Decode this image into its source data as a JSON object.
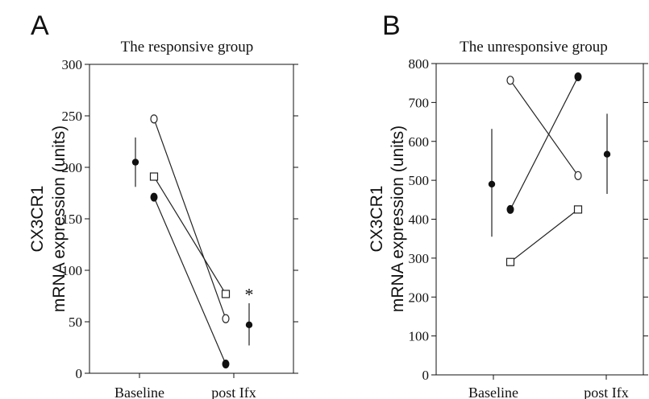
{
  "chart_data": [
    {
      "type": "scatter",
      "panel_label": "A",
      "title": "The responsive group",
      "ylabel_line1": "CX3CR1",
      "ylabel_line2": "mRNA expression (units)",
      "categories": [
        "Baseline",
        "post Ifx"
      ],
      "ylim": [
        0,
        300
      ],
      "yticks": [
        0,
        50,
        100,
        150,
        200,
        250,
        300
      ],
      "series": [
        {
          "marker": "open-circle",
          "values": [
            247,
            53
          ]
        },
        {
          "marker": "open-square",
          "values": [
            191,
            77
          ]
        },
        {
          "marker": "filled-circle",
          "values": [
            171,
            9
          ]
        }
      ],
      "summary": [
        {
          "mean": 205,
          "low": 181,
          "high": 229
        },
        {
          "mean": 47,
          "low": 27,
          "high": 68
        }
      ],
      "annotations": [
        {
          "text": "*",
          "category": 1,
          "y": 77
        }
      ]
    },
    {
      "type": "scatter",
      "panel_label": "B",
      "title": "The unresponsive group",
      "ylabel_line1": "CX3CR1",
      "ylabel_line2": "mRNA expression (units)",
      "categories": [
        "Baseline",
        "post Ifx"
      ],
      "ylim": [
        0,
        800
      ],
      "yticks": [
        0,
        100,
        200,
        300,
        400,
        500,
        600,
        700,
        800
      ],
      "series": [
        {
          "marker": "open-circle",
          "values": [
            757,
            512
          ]
        },
        {
          "marker": "filled-circle",
          "values": [
            425,
            766
          ]
        },
        {
          "marker": "open-square",
          "values": [
            290,
            425
          ]
        }
      ],
      "summary": [
        {
          "mean": 490,
          "low": 355,
          "high": 632
        },
        {
          "mean": 567,
          "low": 465,
          "high": 671
        }
      ],
      "annotations": []
    }
  ]
}
